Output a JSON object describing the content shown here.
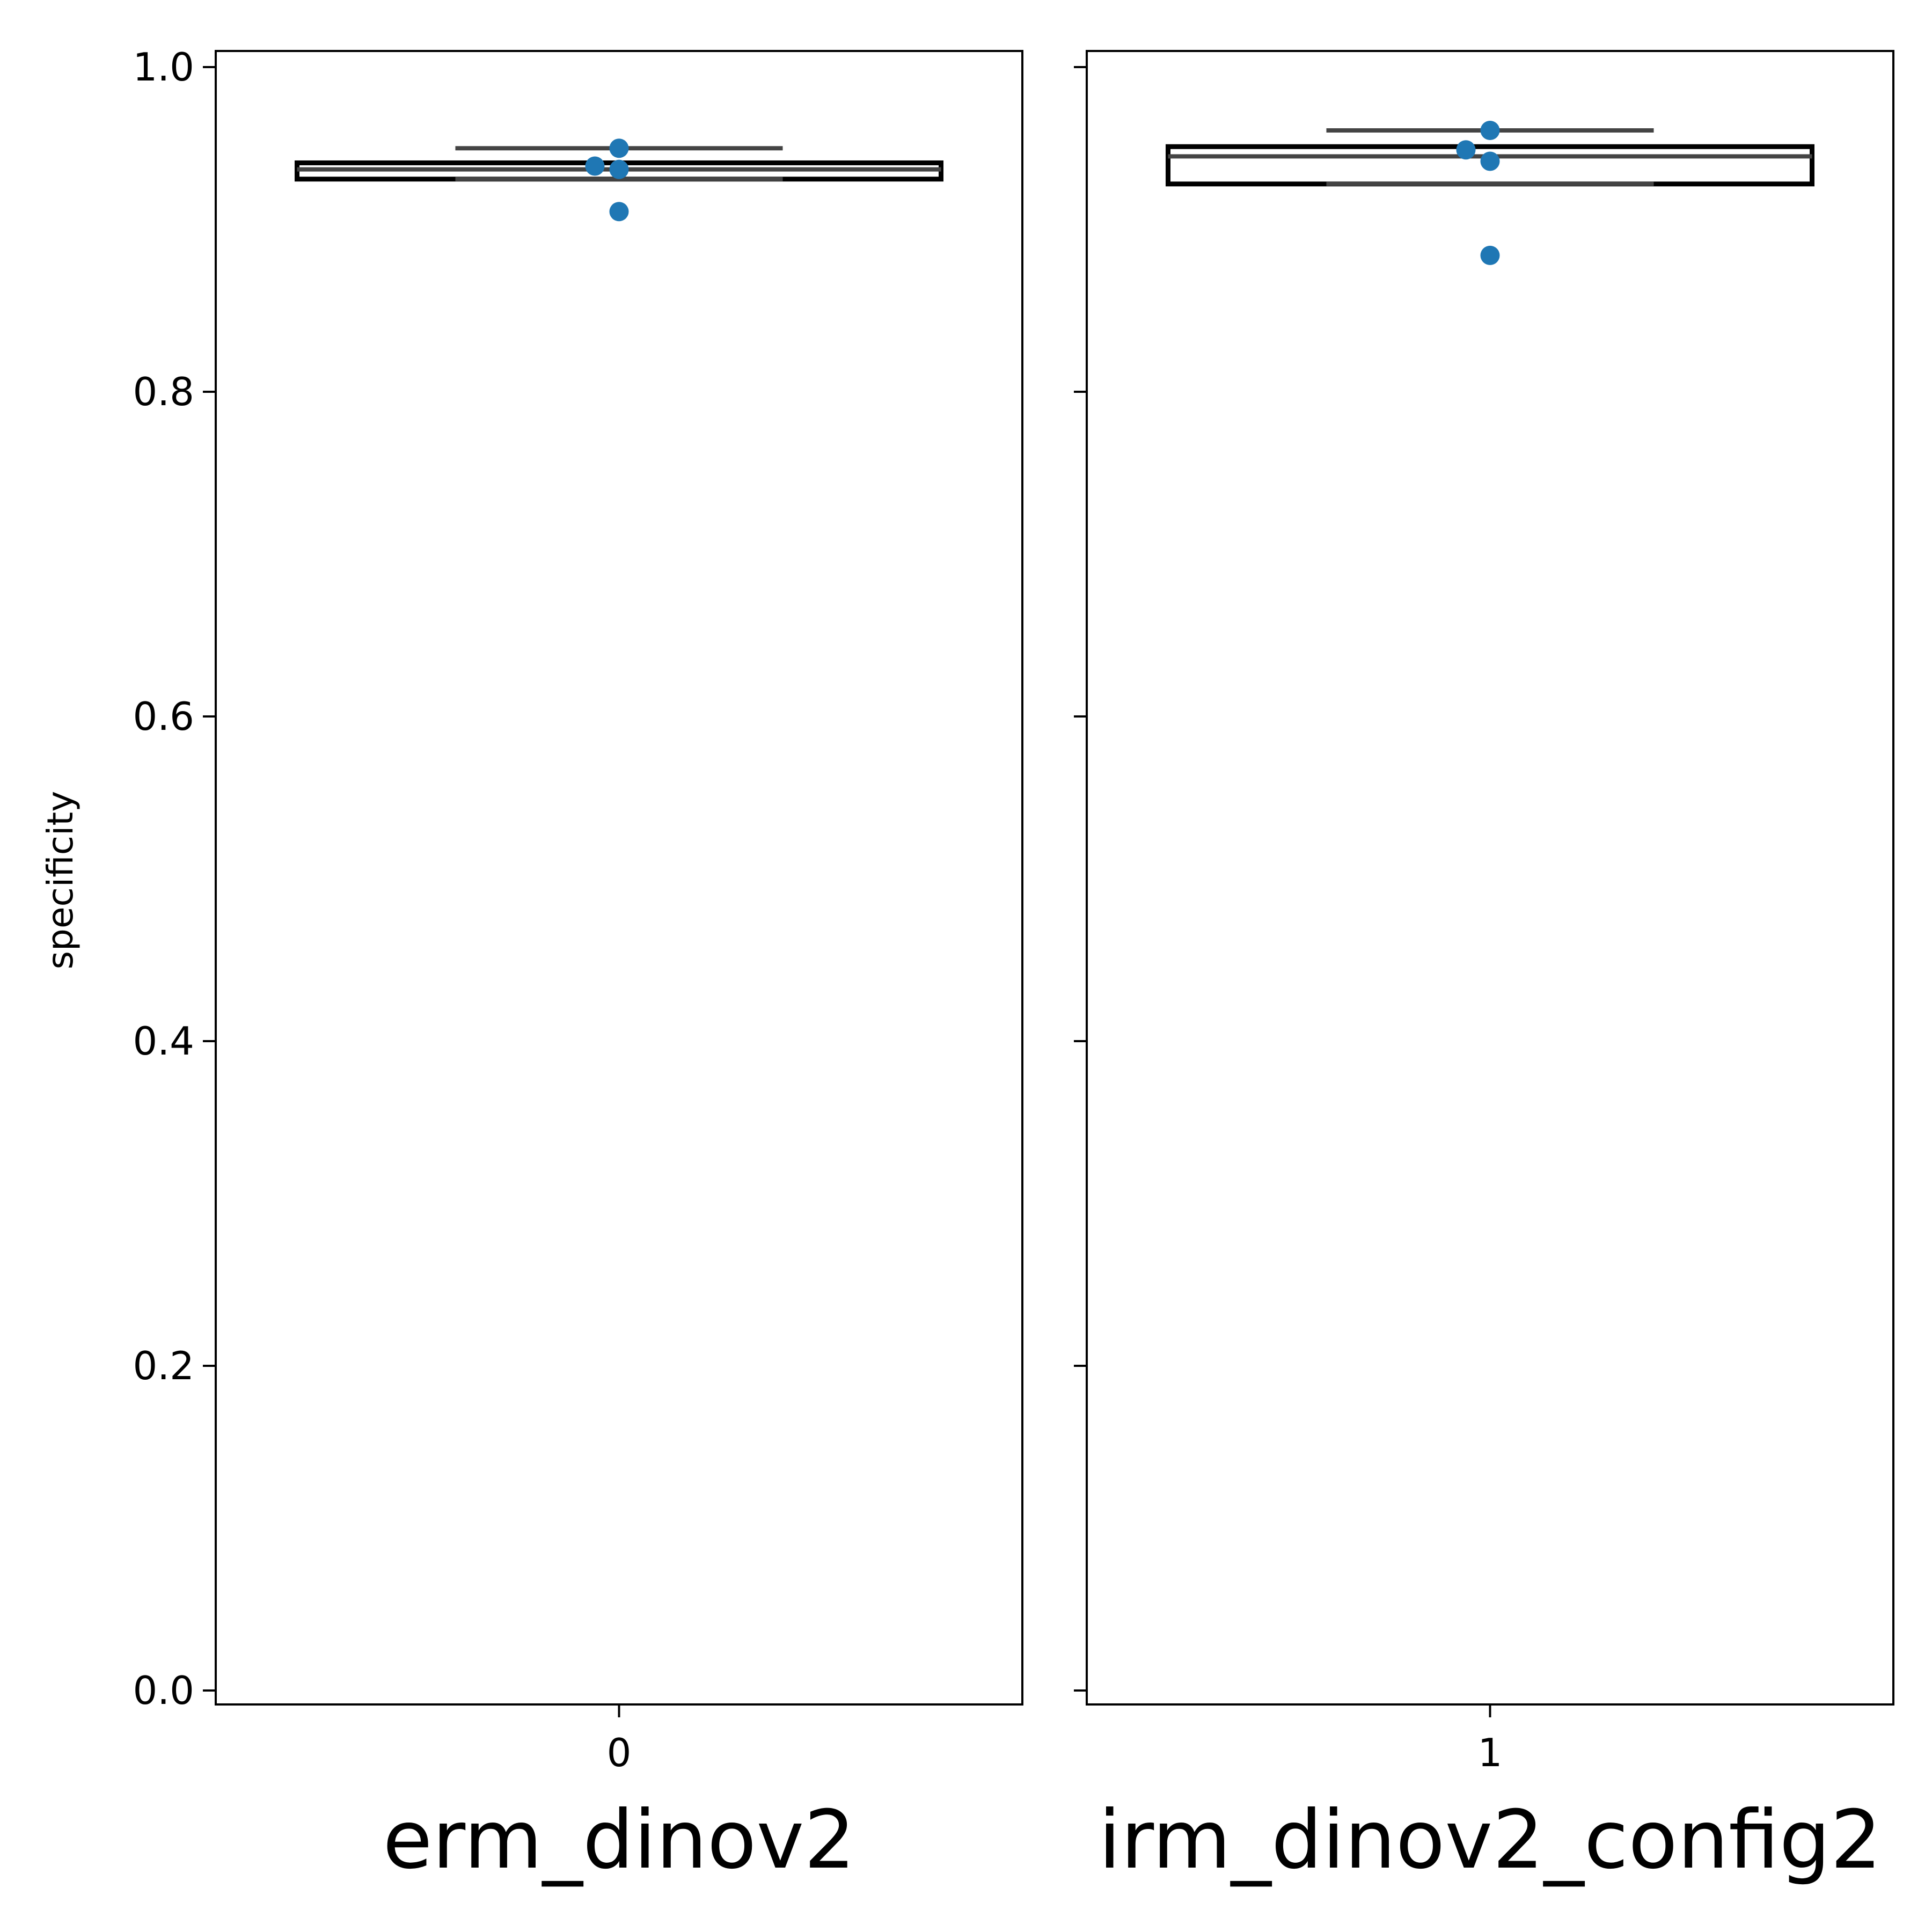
{
  "chart_data": {
    "type": "box",
    "ylabel": "specificity",
    "ylim": [
      0.0,
      1.0
    ],
    "yticks": [
      "0.0",
      "0.2",
      "0.4",
      "0.6",
      "0.8",
      "1.0"
    ],
    "grid": false,
    "panels": [
      {
        "name": "erm_dinov2",
        "tick_label": "0",
        "box": {
          "q1": 0.931,
          "median": 0.937,
          "q3": 0.941,
          "whisker_low": 0.931,
          "whisker_high": 0.95
        },
        "points": [
          0.95,
          0.939,
          0.937,
          0.911
        ]
      },
      {
        "name": "irm_dinov2_config2",
        "tick_label": "1",
        "box": {
          "q1": 0.928,
          "median": 0.945,
          "q3": 0.951,
          "whisker_low": 0.928,
          "whisker_high": 0.961
        },
        "points": [
          0.961,
          0.949,
          0.942,
          0.884
        ]
      }
    ],
    "colors": {
      "points": "#1f77b4",
      "box_edge": "#000000",
      "lines": "#444444"
    }
  }
}
